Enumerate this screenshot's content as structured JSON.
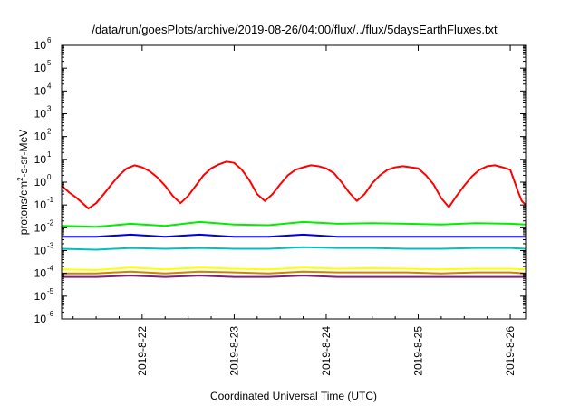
{
  "chart_data": {
    "type": "line",
    "title": "/data/run/goesPlots/archive/2019-08-26/04:00/flux/../flux/5daysEarthFluxes.txt",
    "xlabel": "Coordinated Universal Time (UTC)",
    "ylabel": "protons/cm2-s-sr-MeV",
    "ylabel_parts": {
      "pre": "protons/cm",
      "sup": "2",
      "post": "-s-sr-MeV"
    },
    "y_scale": "log",
    "ylim": [
      1e-06,
      1000000.0
    ],
    "y_ticks": [
      {
        "base": "10",
        "exp": "-6",
        "value": 1e-06
      },
      {
        "base": "10",
        "exp": "-5",
        "value": 1e-05
      },
      {
        "base": "10",
        "exp": "-4",
        "value": 0.0001
      },
      {
        "base": "10",
        "exp": "-3",
        "value": 0.001
      },
      {
        "base": "10",
        "exp": "-2",
        "value": 0.01
      },
      {
        "base": "10",
        "exp": "-1",
        "value": 0.1
      },
      {
        "base": "10",
        "exp": "0",
        "value": 1
      },
      {
        "base": "10",
        "exp": "1",
        "value": 10
      },
      {
        "base": "10",
        "exp": "2",
        "value": 100
      },
      {
        "base": "10",
        "exp": "3",
        "value": 1000
      },
      {
        "base": "10",
        "exp": "4",
        "value": 10000
      },
      {
        "base": "10",
        "exp": "5",
        "value": 100000
      },
      {
        "base": "10",
        "exp": "6",
        "value": 1000000
      }
    ],
    "xlim": [
      "2019-08-21T03:00",
      "2019-08-26T04:00"
    ],
    "x_ticks": [
      {
        "label": "2019-8-22",
        "value": "2019-08-22T00:00"
      },
      {
        "label": "2019-8-23",
        "value": "2019-08-23T00:00"
      },
      {
        "label": "2019-8-24",
        "value": "2019-08-24T00:00"
      },
      {
        "label": "2019-8-25",
        "value": "2019-08-25T00:00"
      },
      {
        "label": "2019-8-26",
        "value": "2019-08-26T00:00"
      }
    ],
    "grid": false,
    "legend": "none",
    "series": [
      {
        "color": "#ff0000",
        "values": [
          [
            "2019-08-21T03:00",
            0.7
          ],
          [
            "2019-08-21T05:00",
            0.35
          ],
          [
            "2019-08-21T07:00",
            0.2
          ],
          [
            "2019-08-21T09:00",
            0.1
          ],
          [
            "2019-08-21T10:00",
            0.07
          ],
          [
            "2019-08-21T12:00",
            0.12
          ],
          [
            "2019-08-21T14:00",
            0.3
          ],
          [
            "2019-08-21T16:00",
            0.8
          ],
          [
            "2019-08-21T18:00",
            2.0
          ],
          [
            "2019-08-21T20:00",
            4.0
          ],
          [
            "2019-08-21T22:00",
            5.5
          ],
          [
            "2019-08-22T00:00",
            4.5
          ],
          [
            "2019-08-22T02:00",
            3.0
          ],
          [
            "2019-08-22T04:00",
            1.6
          ],
          [
            "2019-08-22T06:00",
            0.7
          ],
          [
            "2019-08-22T08:00",
            0.25
          ],
          [
            "2019-08-22T10:00",
            0.12
          ],
          [
            "2019-08-22T12:00",
            0.25
          ],
          [
            "2019-08-22T14:00",
            0.7
          ],
          [
            "2019-08-22T16:00",
            2.0
          ],
          [
            "2019-08-22T18:00",
            4.0
          ],
          [
            "2019-08-22T20:00",
            6.0
          ],
          [
            "2019-08-22T22:00",
            8.0
          ],
          [
            "2019-08-23T00:00",
            7.0
          ],
          [
            "2019-08-23T02:00",
            3.5
          ],
          [
            "2019-08-23T04:00",
            1.2
          ],
          [
            "2019-08-23T06:00",
            0.3
          ],
          [
            "2019-08-23T08:00",
            0.15
          ],
          [
            "2019-08-23T10:00",
            0.3
          ],
          [
            "2019-08-23T12:00",
            0.8
          ],
          [
            "2019-08-23T14:00",
            2.0
          ],
          [
            "2019-08-23T16:00",
            3.5
          ],
          [
            "2019-08-23T18:00",
            4.5
          ],
          [
            "2019-08-23T20:00",
            5.5
          ],
          [
            "2019-08-23T22:00",
            5.0
          ],
          [
            "2019-08-24T00:00",
            4.0
          ],
          [
            "2019-08-24T02:00",
            2.5
          ],
          [
            "2019-08-24T04:00",
            1.0
          ],
          [
            "2019-08-24T06:00",
            0.35
          ],
          [
            "2019-08-24T08:00",
            0.15
          ],
          [
            "2019-08-24T10:00",
            0.3
          ],
          [
            "2019-08-24T12:00",
            0.9
          ],
          [
            "2019-08-24T14:00",
            2.0
          ],
          [
            "2019-08-24T16:00",
            3.5
          ],
          [
            "2019-08-24T18:00",
            4.5
          ],
          [
            "2019-08-24T20:00",
            5.0
          ],
          [
            "2019-08-24T22:00",
            4.5
          ],
          [
            "2019-08-25T00:00",
            4.0
          ],
          [
            "2019-08-25T02:00",
            2.0
          ],
          [
            "2019-08-25T04:00",
            0.8
          ],
          [
            "2019-08-25T06:00",
            0.2
          ],
          [
            "2019-08-25T08:00",
            0.08
          ],
          [
            "2019-08-25T10:00",
            0.25
          ],
          [
            "2019-08-25T12:00",
            0.7
          ],
          [
            "2019-08-25T14:00",
            1.8
          ],
          [
            "2019-08-25T16:00",
            3.5
          ],
          [
            "2019-08-25T18:00",
            5.0
          ],
          [
            "2019-08-25T20:00",
            5.5
          ],
          [
            "2019-08-25T22:00",
            4.5
          ],
          [
            "2019-08-26T00:00",
            3.5
          ],
          [
            "2019-08-26T01:00",
            1.2
          ],
          [
            "2019-08-26T02:00",
            0.4
          ],
          [
            "2019-08-26T03:00",
            0.15
          ],
          [
            "2019-08-26T04:00",
            0.1
          ]
        ]
      },
      {
        "color": "#00ee00",
        "values": [
          [
            "2019-08-21T03:00",
            0.012
          ],
          [
            "2019-08-21T12:00",
            0.011
          ],
          [
            "2019-08-21T21:00",
            0.015
          ],
          [
            "2019-08-22T06:00",
            0.012
          ],
          [
            "2019-08-22T15:00",
            0.018
          ],
          [
            "2019-08-23T00:00",
            0.014
          ],
          [
            "2019-08-23T09:00",
            0.013
          ],
          [
            "2019-08-23T18:00",
            0.018
          ],
          [
            "2019-08-24T03:00",
            0.015
          ],
          [
            "2019-08-24T12:00",
            0.016
          ],
          [
            "2019-08-24T21:00",
            0.015
          ],
          [
            "2019-08-25T06:00",
            0.014
          ],
          [
            "2019-08-25T15:00",
            0.016
          ],
          [
            "2019-08-26T00:00",
            0.015
          ],
          [
            "2019-08-26T04:00",
            0.014
          ]
        ]
      },
      {
        "color": "#0000dd",
        "values": [
          [
            "2019-08-21T03:00",
            0.004
          ],
          [
            "2019-08-21T12:00",
            0.004
          ],
          [
            "2019-08-21T21:00",
            0.005
          ],
          [
            "2019-08-22T06:00",
            0.004
          ],
          [
            "2019-08-22T15:00",
            0.005
          ],
          [
            "2019-08-23T00:00",
            0.004
          ],
          [
            "2019-08-23T09:00",
            0.004
          ],
          [
            "2019-08-23T18:00",
            0.005
          ],
          [
            "2019-08-24T03:00",
            0.004
          ],
          [
            "2019-08-24T12:00",
            0.004
          ],
          [
            "2019-08-24T21:00",
            0.004
          ],
          [
            "2019-08-25T06:00",
            0.004
          ],
          [
            "2019-08-25T15:00",
            0.004
          ],
          [
            "2019-08-26T00:00",
            0.004
          ],
          [
            "2019-08-26T04:00",
            0.004
          ]
        ]
      },
      {
        "color": "#00bfbf",
        "values": [
          [
            "2019-08-21T03:00",
            0.0012
          ],
          [
            "2019-08-21T12:00",
            0.0011
          ],
          [
            "2019-08-21T21:00",
            0.0013
          ],
          [
            "2019-08-22T06:00",
            0.0012
          ],
          [
            "2019-08-22T15:00",
            0.0013
          ],
          [
            "2019-08-23T00:00",
            0.0012
          ],
          [
            "2019-08-23T09:00",
            0.0012
          ],
          [
            "2019-08-23T18:00",
            0.0014
          ],
          [
            "2019-08-24T03:00",
            0.0013
          ],
          [
            "2019-08-24T12:00",
            0.0013
          ],
          [
            "2019-08-24T21:00",
            0.0012
          ],
          [
            "2019-08-25T06:00",
            0.0012
          ],
          [
            "2019-08-25T15:00",
            0.0013
          ],
          [
            "2019-08-26T00:00",
            0.0013
          ],
          [
            "2019-08-26T04:00",
            0.0012
          ]
        ]
      },
      {
        "color": "#ffff00",
        "values": [
          [
            "2019-08-21T03:00",
            0.00015
          ],
          [
            "2019-08-21T12:00",
            0.00014
          ],
          [
            "2019-08-21T21:00",
            0.00018
          ],
          [
            "2019-08-22T06:00",
            0.00015
          ],
          [
            "2019-08-22T15:00",
            0.00018
          ],
          [
            "2019-08-23T00:00",
            0.00016
          ],
          [
            "2019-08-23T09:00",
            0.00015
          ],
          [
            "2019-08-23T18:00",
            0.00018
          ],
          [
            "2019-08-24T03:00",
            0.00016
          ],
          [
            "2019-08-24T12:00",
            0.00017
          ],
          [
            "2019-08-24T21:00",
            0.00016
          ],
          [
            "2019-08-25T06:00",
            0.00015
          ],
          [
            "2019-08-25T15:00",
            0.00016
          ],
          [
            "2019-08-26T00:00",
            0.00016
          ],
          [
            "2019-08-26T04:00",
            0.00015
          ]
        ]
      },
      {
        "color": "#cc8400",
        "values": [
          [
            "2019-08-21T03:00",
            0.0001
          ],
          [
            "2019-08-21T12:00",
            0.0001
          ],
          [
            "2019-08-21T21:00",
            0.00012
          ],
          [
            "2019-08-22T06:00",
            0.0001
          ],
          [
            "2019-08-22T15:00",
            0.00012
          ],
          [
            "2019-08-23T00:00",
            0.00011
          ],
          [
            "2019-08-23T09:00",
            0.0001
          ],
          [
            "2019-08-23T18:00",
            0.00012
          ],
          [
            "2019-08-24T03:00",
            0.00011
          ],
          [
            "2019-08-24T12:00",
            0.00011
          ],
          [
            "2019-08-24T21:00",
            0.00011
          ],
          [
            "2019-08-25T06:00",
            0.0001
          ],
          [
            "2019-08-25T15:00",
            0.00011
          ],
          [
            "2019-08-26T00:00",
            0.00011
          ],
          [
            "2019-08-26T04:00",
            0.0001
          ]
        ]
      },
      {
        "color": "#7f2070",
        "values": [
          [
            "2019-08-21T03:00",
            7e-05
          ],
          [
            "2019-08-21T12:00",
            7e-05
          ],
          [
            "2019-08-21T21:00",
            8e-05
          ],
          [
            "2019-08-22T06:00",
            7e-05
          ],
          [
            "2019-08-22T15:00",
            8e-05
          ],
          [
            "2019-08-23T00:00",
            7e-05
          ],
          [
            "2019-08-23T09:00",
            7e-05
          ],
          [
            "2019-08-23T18:00",
            8e-05
          ],
          [
            "2019-08-24T03:00",
            7e-05
          ],
          [
            "2019-08-24T12:00",
            7e-05
          ],
          [
            "2019-08-24T21:00",
            7e-05
          ],
          [
            "2019-08-25T06:00",
            7e-05
          ],
          [
            "2019-08-25T15:00",
            7e-05
          ],
          [
            "2019-08-26T00:00",
            7e-05
          ],
          [
            "2019-08-26T04:00",
            7e-05
          ]
        ]
      }
    ]
  }
}
